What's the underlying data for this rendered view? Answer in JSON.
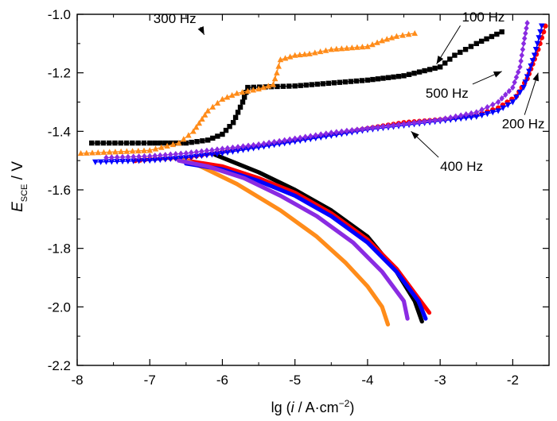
{
  "chart_data": {
    "type": "line",
    "title": "",
    "xlabel": {
      "prefix": "lg (",
      "italic": "i",
      "suffix": " / A·cm",
      "superscript": "−2",
      "close": ")"
    },
    "ylabel": {
      "italic": "E",
      "subscript": "SCE",
      "suffix": " / V"
    },
    "xlim": [
      -8,
      -1.5
    ],
    "ylim": [
      -2.2,
      -1.0
    ],
    "xticks": [
      -8,
      -7,
      -6,
      -5,
      -4,
      -3,
      -2
    ],
    "yticks": [
      -2.2,
      -2.0,
      -1.8,
      -1.6,
      -1.4,
      -1.2,
      -1.0
    ],
    "xtick_labels": [
      "-8",
      "-7",
      "-6",
      "-5",
      "-4",
      "-3",
      "-2"
    ],
    "ytick_labels": [
      "-2.2",
      "-2.0",
      "-1.8",
      "-1.6",
      "-1.4",
      "-1.2",
      "-1.0"
    ],
    "grid": false,
    "legend": "none",
    "series": [
      {
        "name": "100 Hz",
        "color": "#000000",
        "marker": "square",
        "cathodic": [
          [
            -3.25,
            -2.05
          ],
          [
            -3.35,
            -1.98
          ],
          [
            -3.6,
            -1.88
          ],
          [
            -4.0,
            -1.76
          ],
          [
            -4.5,
            -1.67
          ],
          [
            -5.0,
            -1.6
          ],
          [
            -5.5,
            -1.54
          ],
          [
            -5.9,
            -1.5
          ],
          [
            -6.1,
            -1.48
          ]
        ],
        "anodic": [
          [
            -7.8,
            -1.44
          ],
          [
            -7.0,
            -1.44
          ],
          [
            -6.5,
            -1.44
          ],
          [
            -6.2,
            -1.43
          ],
          [
            -6.0,
            -1.41
          ],
          [
            -5.85,
            -1.37
          ],
          [
            -5.72,
            -1.3
          ],
          [
            -5.65,
            -1.25
          ],
          [
            -5.0,
            -1.245
          ],
          [
            -4.0,
            -1.225
          ],
          [
            -3.5,
            -1.21
          ],
          [
            -3.0,
            -1.18
          ],
          [
            -2.8,
            -1.14
          ],
          [
            -2.5,
            -1.1
          ],
          [
            -2.15,
            -1.06
          ]
        ]
      },
      {
        "name": "200 Hz",
        "color": "#ff0000",
        "marker": "circle",
        "cathodic": [
          [
            -3.15,
            -2.02
          ],
          [
            -3.3,
            -1.97
          ],
          [
            -3.6,
            -1.87
          ],
          [
            -4.0,
            -1.77
          ],
          [
            -4.5,
            -1.68
          ],
          [
            -5.0,
            -1.61
          ],
          [
            -5.5,
            -1.56
          ],
          [
            -6.0,
            -1.52
          ],
          [
            -6.5,
            -1.5
          ]
        ],
        "anodic": [
          [
            -7.2,
            -1.5
          ],
          [
            -7.0,
            -1.495
          ],
          [
            -6.5,
            -1.49
          ],
          [
            -6.0,
            -1.47
          ],
          [
            -5.5,
            -1.45
          ],
          [
            -5.0,
            -1.43
          ],
          [
            -4.5,
            -1.41
          ],
          [
            -4.0,
            -1.39
          ],
          [
            -3.5,
            -1.37
          ],
          [
            -3.0,
            -1.36
          ],
          [
            -2.5,
            -1.345
          ],
          [
            -2.2,
            -1.32
          ],
          [
            -1.95,
            -1.28
          ],
          [
            -1.8,
            -1.22
          ],
          [
            -1.65,
            -1.12
          ],
          [
            -1.55,
            -1.04
          ]
        ]
      },
      {
        "name": "300 Hz",
        "color": "#ff8c1a",
        "marker": "triangle",
        "cathodic": [
          [
            -3.72,
            -2.06
          ],
          [
            -3.8,
            -2.0
          ],
          [
            -4.0,
            -1.93
          ],
          [
            -4.3,
            -1.85
          ],
          [
            -4.7,
            -1.76
          ],
          [
            -5.2,
            -1.67
          ],
          [
            -5.8,
            -1.58
          ],
          [
            -6.3,
            -1.52
          ],
          [
            -6.6,
            -1.49
          ]
        ],
        "anodic": [
          [
            -7.95,
            -1.475
          ],
          [
            -7.0,
            -1.465
          ],
          [
            -6.6,
            -1.44
          ],
          [
            -6.4,
            -1.4
          ],
          [
            -6.2,
            -1.33
          ],
          [
            -6.0,
            -1.29
          ],
          [
            -5.8,
            -1.27
          ],
          [
            -5.5,
            -1.255
          ],
          [
            -5.3,
            -1.24
          ],
          [
            -5.25,
            -1.2
          ],
          [
            -5.2,
            -1.155
          ],
          [
            -5.0,
            -1.14
          ],
          [
            -4.8,
            -1.135
          ],
          [
            -4.5,
            -1.12
          ],
          [
            -4.0,
            -1.11
          ],
          [
            -3.8,
            -1.09
          ],
          [
            -3.6,
            -1.075
          ],
          [
            -3.35,
            -1.065
          ]
        ]
      },
      {
        "name": "400 Hz",
        "color": "#0000ff",
        "marker": "triangle-down",
        "cathodic": [
          [
            -3.2,
            -2.04
          ],
          [
            -3.3,
            -1.98
          ],
          [
            -3.6,
            -1.88
          ],
          [
            -4.0,
            -1.78
          ],
          [
            -4.5,
            -1.69
          ],
          [
            -5.0,
            -1.62
          ],
          [
            -5.5,
            -1.57
          ],
          [
            -6.0,
            -1.53
          ],
          [
            -6.5,
            -1.51
          ]
        ],
        "anodic": [
          [
            -7.75,
            -1.505
          ],
          [
            -7.0,
            -1.5
          ],
          [
            -6.5,
            -1.49
          ],
          [
            -6.0,
            -1.475
          ],
          [
            -5.5,
            -1.455
          ],
          [
            -5.0,
            -1.435
          ],
          [
            -4.5,
            -1.415
          ],
          [
            -4.0,
            -1.395
          ],
          [
            -3.5,
            -1.38
          ],
          [
            -3.0,
            -1.365
          ],
          [
            -2.5,
            -1.35
          ],
          [
            -2.2,
            -1.33
          ],
          [
            -2.0,
            -1.3
          ],
          [
            -1.85,
            -1.25
          ],
          [
            -1.7,
            -1.14
          ],
          [
            -1.6,
            -1.04
          ]
        ]
      },
      {
        "name": "500 Hz",
        "color": "#8a2be2",
        "marker": "diamond",
        "cathodic": [
          [
            -3.45,
            -2.04
          ],
          [
            -3.5,
            -1.98
          ],
          [
            -3.8,
            -1.88
          ],
          [
            -4.2,
            -1.78
          ],
          [
            -4.7,
            -1.69
          ],
          [
            -5.2,
            -1.62
          ],
          [
            -5.7,
            -1.56
          ],
          [
            -6.2,
            -1.52
          ],
          [
            -6.6,
            -1.5
          ]
        ],
        "anodic": [
          [
            -7.6,
            -1.49
          ],
          [
            -7.0,
            -1.485
          ],
          [
            -6.5,
            -1.475
          ],
          [
            -6.0,
            -1.46
          ],
          [
            -5.5,
            -1.445
          ],
          [
            -5.0,
            -1.425
          ],
          [
            -4.5,
            -1.405
          ],
          [
            -4.0,
            -1.39
          ],
          [
            -3.5,
            -1.375
          ],
          [
            -3.0,
            -1.36
          ],
          [
            -2.5,
            -1.335
          ],
          [
            -2.2,
            -1.3
          ],
          [
            -2.0,
            -1.25
          ],
          [
            -1.9,
            -1.18
          ],
          [
            -1.85,
            -1.1
          ],
          [
            -1.8,
            -1.03
          ]
        ]
      }
    ],
    "annotations": [
      {
        "text": "300 Hz",
        "x": -6.95,
        "y": -1.03,
        "arrow_to": [
          -6.25,
          -1.07
        ]
      },
      {
        "text": "100 Hz",
        "x": -2.7,
        "y": -1.025,
        "arrow_to": [
          -3.05,
          -1.17
        ]
      },
      {
        "text": "500 Hz",
        "x": -3.2,
        "y": -1.285,
        "arrow_to": [
          -2.15,
          -1.195
        ]
      },
      {
        "text": "200 Hz",
        "x": -2.15,
        "y": -1.39,
        "arrow_to": [
          -1.65,
          -1.2
        ]
      },
      {
        "text": "400 Hz",
        "x": -3.0,
        "y": -1.535,
        "arrow_to": [
          -3.4,
          -1.4
        ]
      }
    ]
  }
}
